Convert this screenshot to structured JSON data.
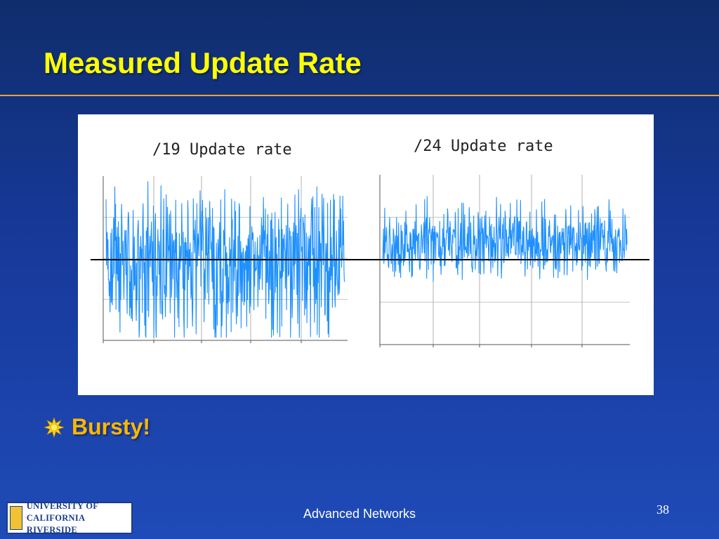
{
  "slide": {
    "title": "Measured Update Rate",
    "bullet": "Bursty!",
    "footer": "Advanced Networks",
    "page_number": "38",
    "logo_line1": "UNIVERSITY OF CALIFORNIA",
    "logo_line2": "RIVERSIDE"
  },
  "colors": {
    "title": "#ffff00",
    "bullet": "#ffb700",
    "rule": "#e8a23b",
    "series": "#1e90ff",
    "reference_line": "#000000"
  },
  "chart_data": [
    {
      "type": "line",
      "title": "/19 Update rate",
      "grid": true,
      "series_color": "#1e90ff",
      "reference_line": true,
      "burstiness": "high",
      "baseline_fraction": 0.58,
      "samples": 600,
      "seed": 19
    },
    {
      "type": "line",
      "title": "/24 Update rate",
      "grid": true,
      "series_color": "#1e90ff",
      "reference_line": true,
      "burstiness": "moderate",
      "baseline_fraction": 0.4,
      "samples": 600,
      "seed": 24
    }
  ]
}
